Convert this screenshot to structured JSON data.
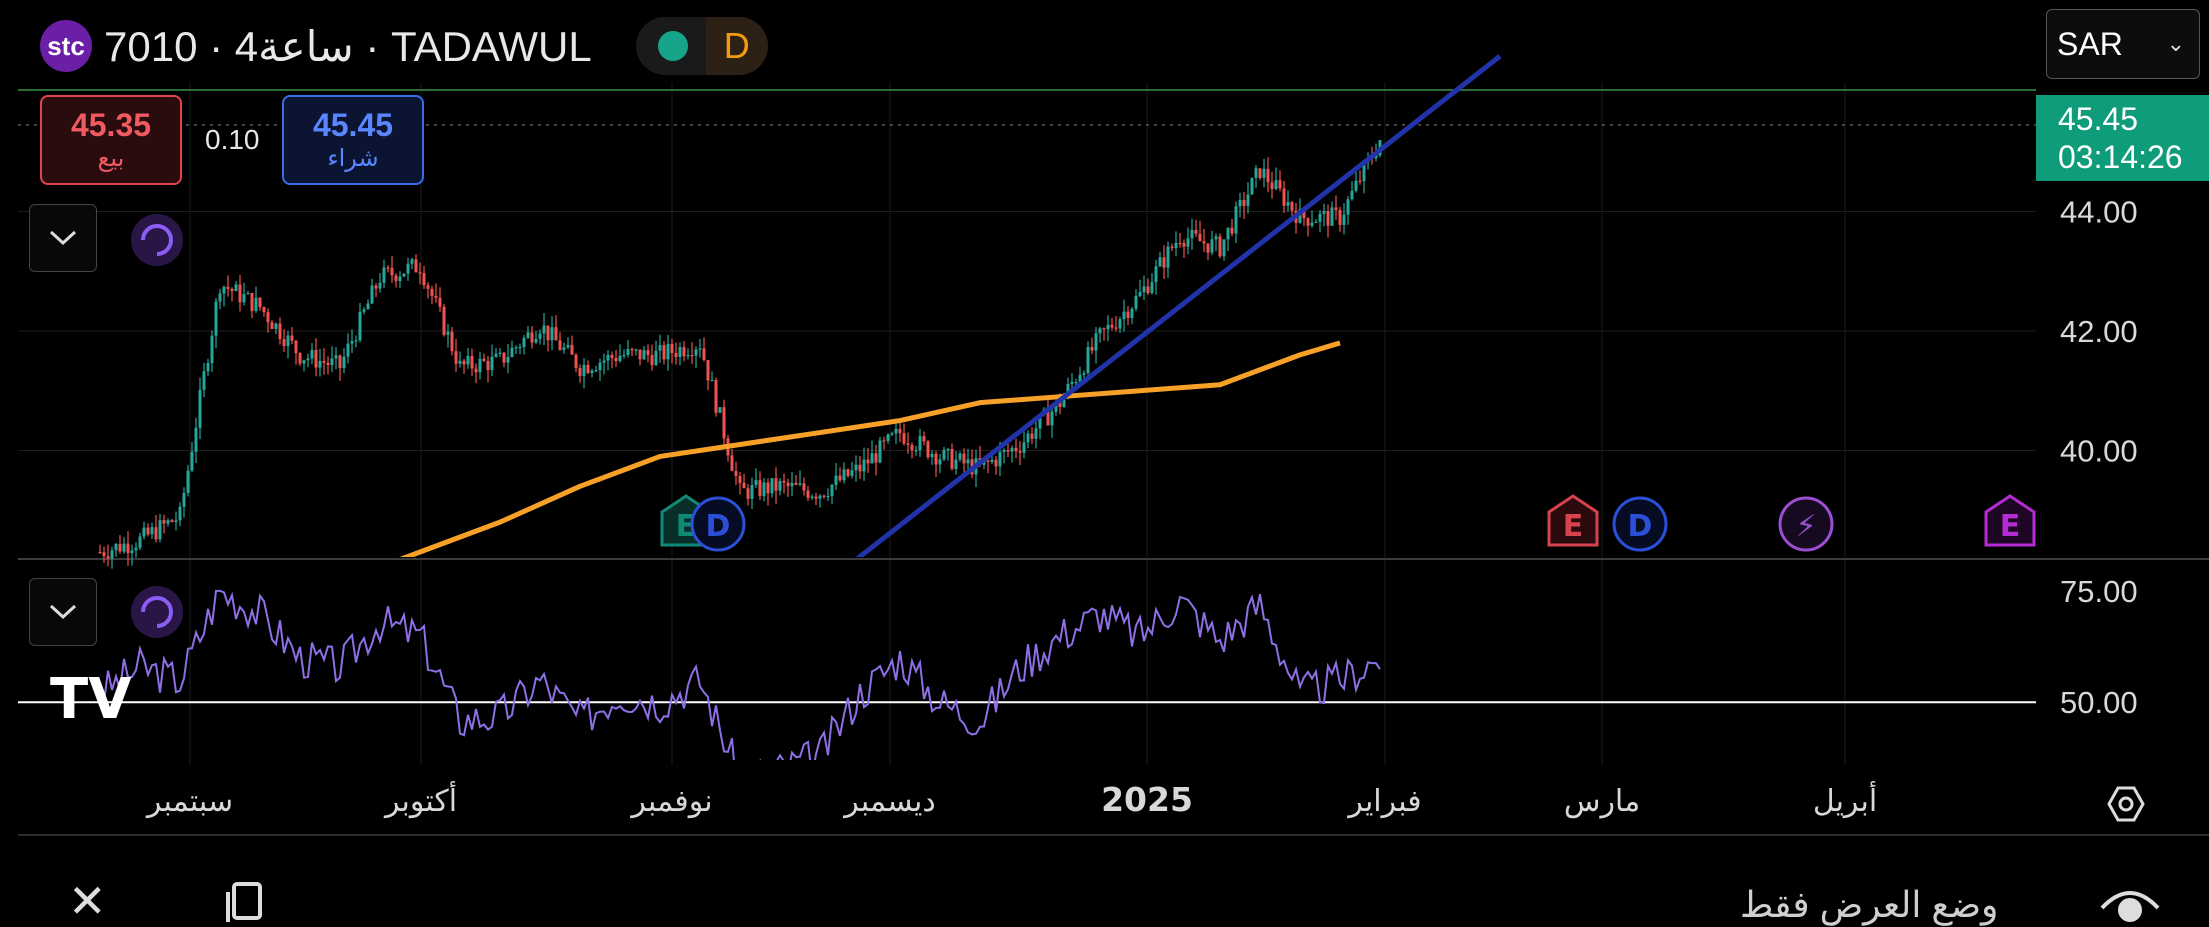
{
  "header": {
    "logo_text": "stc",
    "symbol_title": "7010 · 4ساعة · TADAWUL",
    "status_badge": "D"
  },
  "currency": {
    "selected": "SAR"
  },
  "quote": {
    "sell_price": "45.35",
    "sell_label": "بيع",
    "spread": "0.10",
    "buy_price": "45.45",
    "buy_label": "شراء"
  },
  "last_price": {
    "price": "45.45",
    "countdown": "03:14:26"
  },
  "event_markers": [
    "E",
    "D",
    "E",
    "D",
    "⚡",
    "E"
  ],
  "watermark": "TV",
  "footer": {
    "mode_label": "وضع العرض فقط"
  },
  "colors": {
    "up": "#26a69a",
    "down": "#ef5350",
    "moving_average": "#f7a128",
    "trendline": "#2133a8",
    "rsi": "#8e6fe6",
    "last_price_tag": "#0e9c7a",
    "sell": "#e0444d",
    "buy": "#3b6be6"
  },
  "chart_data": [
    {
      "type": "line",
      "subtype": "candlestick",
      "xlabel": "",
      "ylabel": "",
      "ylim": [
        38.2,
        46.0
      ],
      "y_ticks": [
        "44.00",
        "42.00",
        "40.00"
      ],
      "x_ticks": [
        "سبتمبر",
        "أكتوبر",
        "نوفمبر",
        "ديسمبر",
        "2025",
        "فبراير",
        "مارس",
        "أبريل"
      ],
      "grid": true,
      "series": [
        {
          "kind": "price",
          "x_index": [
            0,
            10,
            20,
            30,
            40,
            50,
            60,
            70,
            80,
            90,
            100,
            110,
            120,
            130,
            140,
            150,
            160,
            170,
            180,
            190,
            200,
            210,
            220,
            230,
            240,
            250,
            260,
            270,
            280,
            290,
            300,
            310,
            320
          ],
          "values": [
            38.3,
            38.5,
            38.9,
            42.8,
            42.4,
            41.6,
            41.4,
            42.9,
            43.1,
            41.4,
            41.5,
            42.1,
            41.4,
            41.6,
            41.6,
            41.8,
            39.3,
            39.4,
            39.3,
            39.7,
            40.3,
            39.9,
            39.7,
            40.1,
            40.8,
            41.9,
            42.6,
            43.6,
            43.4,
            44.7,
            43.9,
            43.9,
            45.2
          ]
        },
        {
          "kind": "moving_average",
          "x_index": [
            60,
            80,
            100,
            120,
            140,
            160,
            180,
            200,
            220,
            240,
            260,
            280,
            300,
            310
          ],
          "values": [
            37.8,
            38.3,
            38.8,
            39.4,
            39.9,
            40.1,
            40.3,
            40.5,
            40.8,
            40.9,
            41.0,
            41.1,
            41.6,
            41.8
          ]
        },
        {
          "kind": "trendline",
          "x_index": [
            180,
            350
          ],
          "values": [
            37.7,
            46.6
          ]
        }
      ]
    },
    {
      "type": "line",
      "ylim": [
        37,
        82
      ],
      "y_ticks": [
        "75.00",
        "50.00"
      ],
      "reference_line": 50,
      "series": [
        {
          "kind": "rsi",
          "x_index": [
            0,
            10,
            20,
            30,
            40,
            50,
            60,
            70,
            80,
            90,
            100,
            110,
            120,
            130,
            140,
            150,
            160,
            170,
            180,
            190,
            200,
            210,
            220,
            230,
            240,
            250,
            260,
            270,
            280,
            290,
            300,
            310,
            320
          ],
          "values": [
            52,
            58,
            55,
            75,
            70,
            60,
            58,
            68,
            65,
            46,
            47,
            55,
            46,
            52,
            50,
            55,
            33,
            35,
            38,
            52,
            60,
            50,
            46,
            58,
            65,
            70,
            65,
            73,
            64,
            72,
            52,
            55,
            60
          ]
        }
      ]
    }
  ]
}
